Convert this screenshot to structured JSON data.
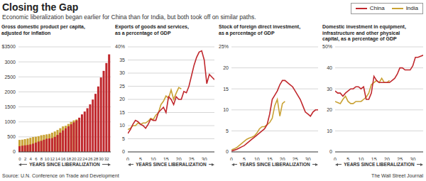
{
  "title": "Closing the Gap",
  "subtitle": "Economic liberalization began earlier for China than for India, but both took off on similar paths.",
  "source": "Source: U.N. Conference on Trade and Development",
  "credit": "The Wall Street Journal",
  "legend": "upper right",
  "chart_data": [
    {
      "type": "bar",
      "title": "Gross domestic product per capita,\nadjusted for inflation",
      "xlabel": "YEARS SINCE LIBERALIZATION",
      "grid": true,
      "categories": [
        "0",
        null,
        "2",
        null,
        "4",
        null,
        "6",
        null,
        "8",
        null,
        "10",
        null,
        "12",
        null,
        "14",
        null,
        "16",
        null,
        "18",
        null,
        "20",
        null,
        "22",
        null,
        "24",
        null,
        "26",
        null,
        "28",
        null,
        "30",
        null,
        "32",
        null
      ],
      "series": [
        {
          "name": "China",
          "color": "#c0282d",
          "values": [
            190,
            205,
            220,
            230,
            250,
            275,
            310,
            345,
            370,
            405,
            440,
            450,
            460,
            500,
            565,
            640,
            715,
            785,
            850,
            920,
            985,
            1050,
            1140,
            1250,
            1345,
            1455,
            1585,
            1745,
            1935,
            2180,
            2480,
            2700,
            2960,
            3250
          ]
        },
        {
          "name": "India",
          "color": "#c9a234",
          "values": [
            400,
            410,
            425,
            445,
            470,
            495,
            505,
            525,
            555,
            570,
            585,
            600,
            640,
            680,
            730,
            790,
            850,
            870,
            930,
            1000,
            1050,
            1080,
            null,
            null,
            null,
            null,
            null,
            null,
            null,
            null,
            null,
            null,
            null,
            null
          ]
        }
      ],
      "ylim": [
        0,
        3500
      ],
      "yticks": [
        0,
        500,
        1000,
        1500,
        2000,
        2500,
        3000,
        {
          "value": 3500,
          "label": "$3500"
        }
      ]
    },
    {
      "type": "line",
      "title": "Exports of goods and services,\nas a percentage of GDP",
      "xlabel": "YEARS SINCE LIBERALIZATION",
      "grid": true,
      "x": [
        0,
        1,
        2,
        3,
        4,
        5,
        6,
        7,
        8,
        9,
        10,
        11,
        12,
        13,
        14,
        15,
        16,
        17,
        18,
        19,
        20,
        21,
        22,
        23,
        24,
        25,
        26,
        27,
        28,
        29,
        30,
        31,
        32,
        33,
        34
      ],
      "series": [
        {
          "name": "China",
          "color": "#c0282d",
          "values": [
            7,
            8.5,
            10.5,
            12,
            11.5,
            10.5,
            10,
            9,
            10.5,
            12.5,
            12,
            12,
            15,
            16,
            17,
            15,
            21,
            20,
            18,
            21,
            20,
            20,
            23,
            22.5,
            25,
            29,
            33,
            36,
            38,
            38.5,
            35,
            26,
            29.5,
            28.5,
            27.5
          ]
        },
        {
          "name": "India",
          "color": "#c9a234",
          "values": [
            8.5,
            9,
            10,
            10,
            11,
            10.5,
            11,
            11,
            11.7,
            12.8,
            12.3,
            14,
            14.8,
            18,
            19.3,
            21.3,
            20.4,
            23.6,
            20,
            22.4,
            24.5,
            24,
            null,
            null,
            null,
            null,
            null,
            null,
            null,
            null,
            null,
            null,
            null,
            null,
            null
          ]
        }
      ],
      "xlim": [
        0,
        34
      ],
      "xticks": [
        0,
        5,
        10,
        15,
        20,
        25,
        30
      ],
      "ylim": [
        0,
        40
      ],
      "yticks": [
        0,
        5,
        10,
        15,
        20,
        25,
        30,
        35,
        {
          "value": 40,
          "label": "40%"
        }
      ]
    },
    {
      "type": "line",
      "title": "Stock of foreign direct investment,\nas a percentage of GDP",
      "xlabel": "YEARS SINCE LIBERALIZATION",
      "grid": true,
      "x": [
        0,
        1,
        2,
        3,
        4,
        5,
        6,
        7,
        8,
        9,
        10,
        11,
        12,
        13,
        14,
        15,
        16,
        17,
        18,
        19,
        20,
        21,
        22,
        23,
        24,
        25,
        26,
        27,
        28,
        29,
        30,
        31,
        32,
        33,
        34
      ],
      "series": [
        {
          "name": "China",
          "color": "#c0282d",
          "values": [
            0.2,
            0.4,
            0.6,
            0.9,
            1.2,
            1.5,
            2,
            2.5,
            3,
            3.5,
            4,
            4.5,
            5,
            5.5,
            6.5,
            9,
            12.5,
            13.5,
            14.5,
            16,
            17,
            17,
            16.5,
            16,
            15.5,
            14.5,
            13.5,
            12.5,
            11,
            9.5,
            9,
            8.5,
            9.5,
            10,
            10
          ]
        },
        {
          "name": "India",
          "color": "#c9a234",
          "values": [
            0.5,
            0.7,
            1,
            1.5,
            2,
            2.5,
            3,
            3.3,
            3.5,
            3.8,
            4.5,
            5.5,
            6,
            6,
            6.5,
            7,
            8,
            11,
            12.5,
            8.5,
            11.5,
            12,
            null,
            null,
            null,
            null,
            null,
            null,
            null,
            null,
            null,
            null,
            null,
            null,
            null
          ]
        }
      ],
      "xlim": [
        0,
        34
      ],
      "xticks": [
        0,
        5,
        10,
        15,
        20,
        25,
        30
      ],
      "ylim": [
        0,
        25
      ],
      "yticks": [
        0,
        5,
        10,
        15,
        20,
        {
          "value": 25,
          "label": "25%"
        }
      ]
    },
    {
      "type": "line",
      "title": "Domestic investment in equipment,\ninfrastructure and other physical\ncapital, as a percentage of GDP",
      "xlabel": "YEARS SINCE LIBERALIZATION",
      "grid": true,
      "x": [
        0,
        1,
        2,
        3,
        4,
        5,
        6,
        7,
        8,
        9,
        10,
        11,
        12,
        13,
        14,
        15,
        16,
        17,
        18,
        19,
        20,
        21,
        22,
        23,
        24,
        25,
        26,
        27,
        28,
        29,
        30,
        31,
        32,
        33,
        34
      ],
      "series": [
        {
          "name": "China",
          "color": "#c0282d",
          "values": [
            29,
            28,
            28,
            26.5,
            28,
            29,
            30,
            30,
            31,
            31,
            30,
            31,
            25,
            25,
            28,
            36,
            34,
            33,
            33,
            33,
            33,
            33,
            34,
            35,
            37,
            40,
            40,
            39,
            39,
            39,
            41,
            45,
            45,
            45.5,
            46
          ]
        },
        {
          "name": "India",
          "color": "#c9a234",
          "values": [
            24,
            23.5,
            23,
            25,
            26.5,
            24,
            23,
            23,
            24,
            24,
            24,
            25,
            26,
            28,
            32,
            33,
            34,
            33,
            35,
            33,
            33,
            34,
            null,
            null,
            null,
            null,
            null,
            null,
            null,
            null,
            null,
            null,
            null,
            null,
            null
          ]
        }
      ],
      "xlim": [
        0,
        34
      ],
      "xticks": [
        0,
        5,
        10,
        15,
        20,
        25,
        30
      ],
      "ylim": [
        0,
        50
      ],
      "yticks": [
        0,
        10,
        20,
        30,
        40,
        {
          "value": 50,
          "label": "50%"
        }
      ]
    }
  ]
}
